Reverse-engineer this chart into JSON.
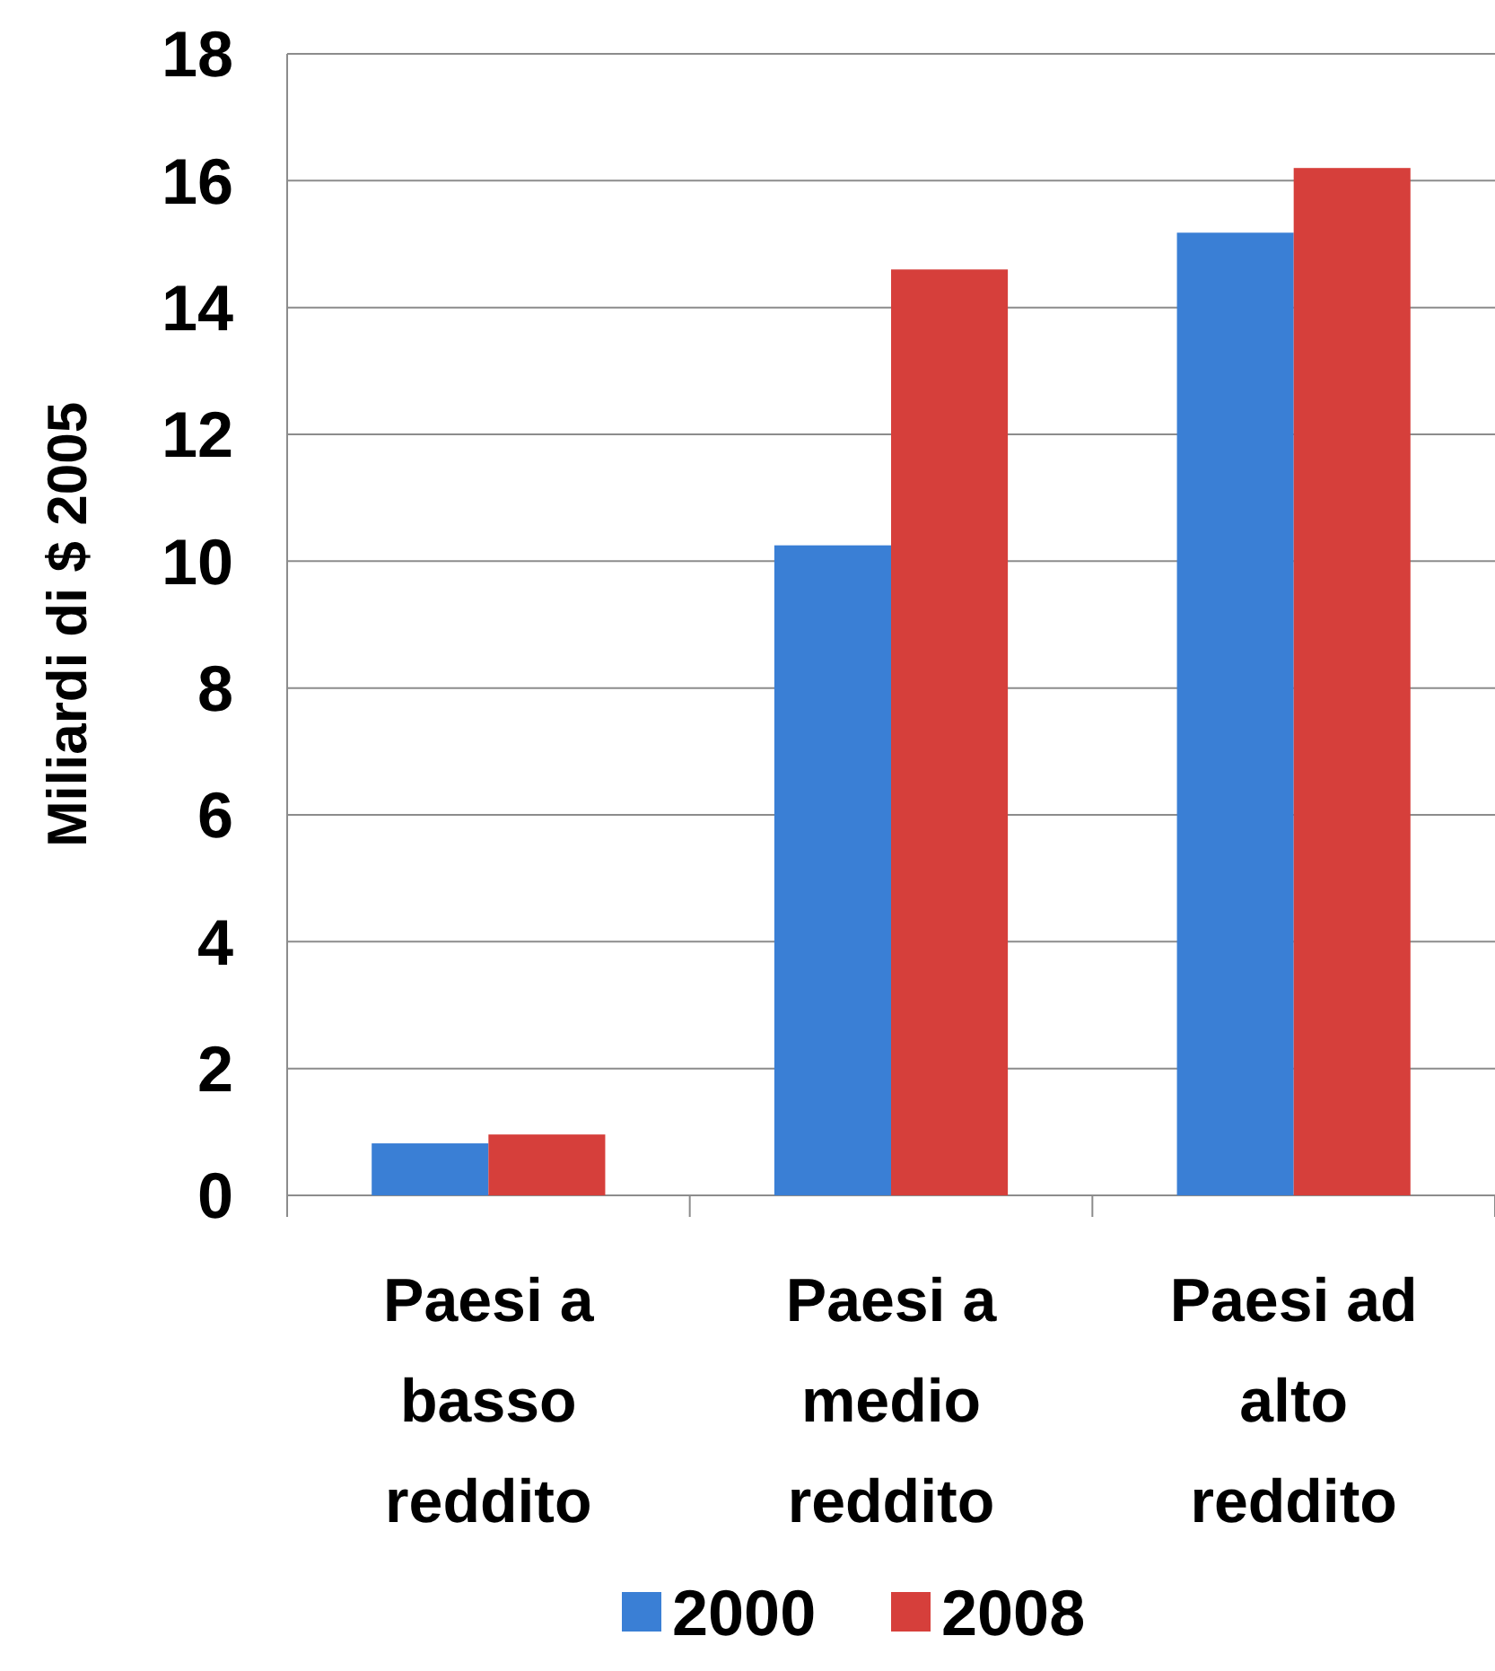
{
  "chart_data": {
    "type": "bar",
    "ylabel": "Miliardi di $ 2005",
    "categories": [
      "Paesi a basso reddito",
      "Paesi a medio reddito",
      "Paesi ad alto reddito"
    ],
    "series": [
      {
        "name": "2000",
        "color": "#3a7fd5",
        "values": [
          0.82,
          10.25,
          15.18
        ]
      },
      {
        "name": "2008",
        "color": "#d63f3b",
        "values": [
          0.96,
          14.6,
          16.2
        ]
      }
    ],
    "ylim": [
      0,
      18
    ],
    "yticks": [
      0,
      2,
      4,
      6,
      8,
      10,
      12,
      14,
      16,
      18
    ],
    "grid": "y",
    "legend": "bottom"
  }
}
